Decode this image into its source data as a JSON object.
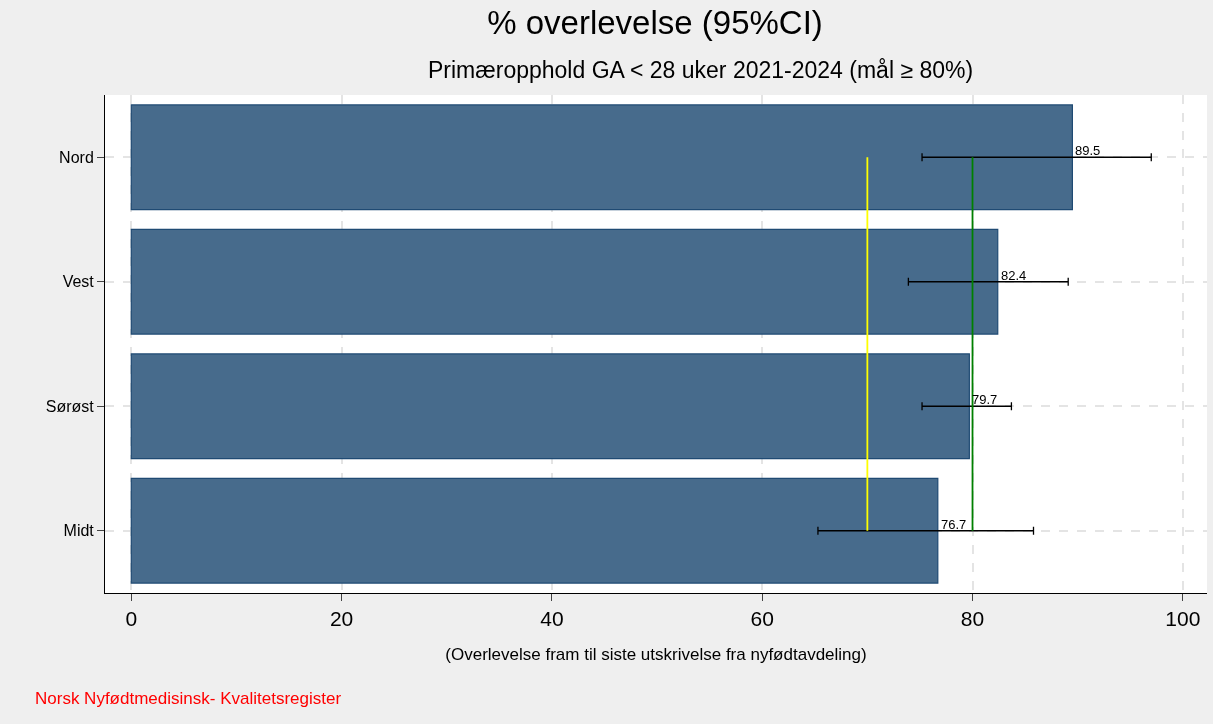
{
  "chart_data": {
    "type": "bar",
    "orientation": "horizontal",
    "title": "% overlevelse (95%CI)",
    "subtitle": "Primæropphold GA < 28 uker 2021-2024 (mål ≥ 80%)",
    "xlabel": "(Overlevelse fram til siste utskrivelse fra nyfødtavdeling)",
    "categories": [
      "Nord",
      "Vest",
      "Sørøst",
      "Midt"
    ],
    "values": [
      89.5,
      82.4,
      79.7,
      76.7
    ],
    "color": "#476b8c",
    "data_labels": true,
    "errors": [
      [
        75.2,
        97.0
      ],
      [
        73.9,
        89.1
      ],
      [
        75.2,
        83.7
      ],
      [
        65.3,
        85.8
      ]
    ],
    "xlim": [
      -2.5,
      102.3
    ],
    "xticks": [
      0,
      20,
      40,
      60,
      80,
      100
    ],
    "grid": true,
    "ref_lines": [
      {
        "axis": "x",
        "value": 70,
        "color": "#ffff00"
      },
      {
        "axis": "x",
        "value": 80,
        "color": "#008000"
      }
    ],
    "annotations": [
      "Norsk Nyfødtmedisinsk- Kvalitetsregister"
    ]
  }
}
